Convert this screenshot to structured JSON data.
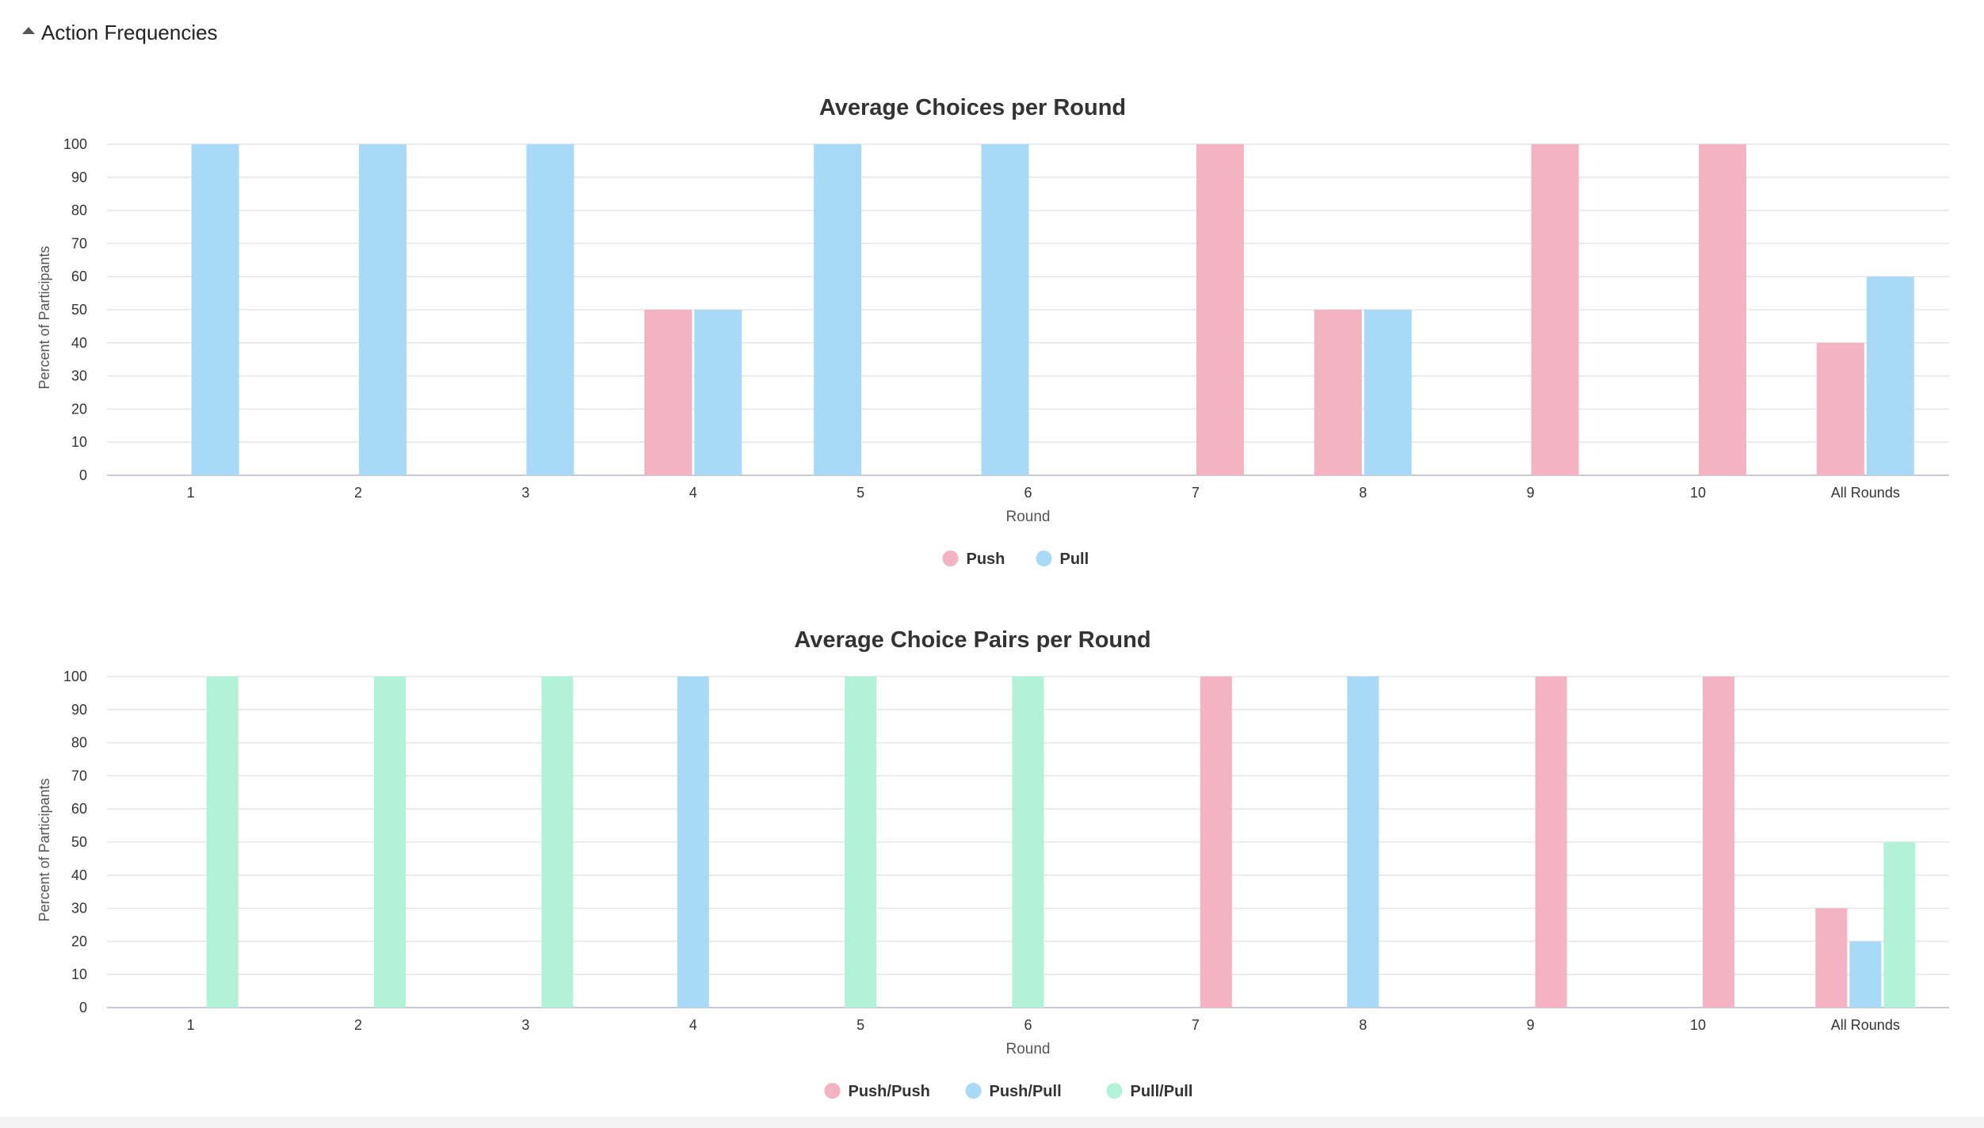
{
  "section": {
    "title": "Action Frequencies"
  },
  "chart_data": [
    {
      "type": "bar",
      "title": "Average Choices per Round",
      "xlabel": "Round",
      "ylabel": "Percent of Participants",
      "ylim": [
        0,
        100
      ],
      "yticks": [
        0,
        10,
        20,
        30,
        40,
        50,
        60,
        70,
        80,
        90,
        100
      ],
      "grid": true,
      "legend_position": "bottom",
      "categories": [
        "1",
        "2",
        "3",
        "4",
        "5",
        "6",
        "7",
        "8",
        "9",
        "10",
        "All Rounds"
      ],
      "series": [
        {
          "name": "Push",
          "color": "#f4b3c2",
          "values": [
            0,
            0,
            0,
            50,
            0,
            0,
            100,
            50,
            100,
            100,
            40
          ]
        },
        {
          "name": "Pull",
          "color": "#a8daf7",
          "values": [
            100,
            100,
            100,
            50,
            100,
            100,
            0,
            50,
            0,
            0,
            60
          ]
        }
      ]
    },
    {
      "type": "bar",
      "title": "Average Choice Pairs per Round",
      "xlabel": "Round",
      "ylabel": "Percent of Participants",
      "ylim": [
        0,
        100
      ],
      "yticks": [
        0,
        10,
        20,
        30,
        40,
        50,
        60,
        70,
        80,
        90,
        100
      ],
      "grid": true,
      "legend_position": "bottom",
      "categories": [
        "1",
        "2",
        "3",
        "4",
        "5",
        "6",
        "7",
        "8",
        "9",
        "10",
        "All Rounds"
      ],
      "series": [
        {
          "name": "Push/Push",
          "color": "#f4b3c2",
          "values": [
            0,
            0,
            0,
            0,
            0,
            0,
            100,
            0,
            100,
            100,
            30
          ]
        },
        {
          "name": "Push/Pull",
          "color": "#a8daf7",
          "values": [
            0,
            0,
            0,
            100,
            0,
            0,
            0,
            100,
            0,
            0,
            20
          ]
        },
        {
          "name": "Pull/Pull",
          "color": "#b2f2d8",
          "values": [
            100,
            100,
            100,
            0,
            100,
            100,
            0,
            0,
            0,
            0,
            50
          ]
        }
      ]
    }
  ]
}
